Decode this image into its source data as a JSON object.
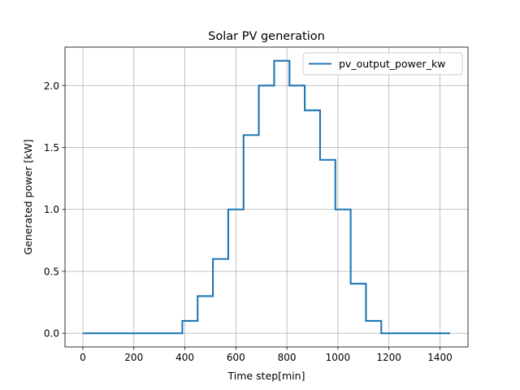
{
  "chart_data": {
    "type": "line",
    "step": true,
    "title": "Solar PV generation",
    "xlabel": "Time step[min]",
    "ylabel": "Generated power [kW]",
    "xlim": [
      -70,
      1510
    ],
    "ylim": [
      -0.11,
      2.31
    ],
    "xticks": [
      0,
      200,
      400,
      600,
      800,
      1000,
      1200,
      1400
    ],
    "yticks": [
      0.0,
      0.5,
      1.0,
      1.5,
      2.0
    ],
    "ytick_labels": [
      "0.0",
      "0.5",
      "1.0",
      "1.5",
      "2.0"
    ],
    "grid": true,
    "legend_position": "top-right",
    "series": [
      {
        "name": "pv_output_power_kw",
        "color": "#1f77b4",
        "x": [
          0,
          390,
          450,
          510,
          570,
          630,
          690,
          750,
          810,
          870,
          930,
          990,
          1050,
          1110,
          1170,
          1440
        ],
        "y": [
          0.0,
          0.1,
          0.3,
          0.6,
          1.0,
          1.6,
          2.0,
          2.2,
          2.0,
          1.8,
          1.4,
          1.0,
          0.4,
          0.1,
          0.0,
          0.0
        ]
      }
    ]
  }
}
